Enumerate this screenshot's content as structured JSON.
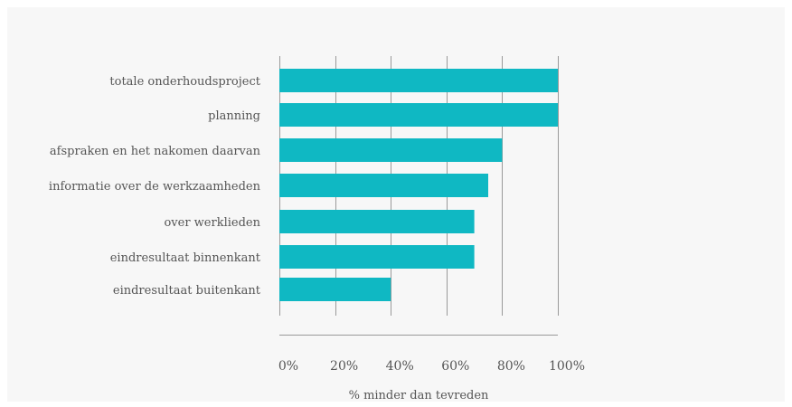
{
  "chart_data": {
    "type": "bar",
    "orientation": "horizontal",
    "categories": [
      "totale onderhoudsproject",
      "planning",
      "afspraken en het nakomen daarvan",
      "informatie over de werkzaamheden",
      "over werklieden",
      "eindresultaat binnenkant",
      "eindresultaat buitenkant"
    ],
    "values": [
      100,
      100,
      80,
      75,
      70,
      70,
      40
    ],
    "xlabel": "% minder dan tevreden",
    "xlim": [
      0,
      100
    ],
    "xticks": [
      0,
      20,
      40,
      60,
      80,
      100
    ],
    "xtick_labels": [
      "0%",
      "20%",
      "40%",
      "60%",
      "80%",
      "100%"
    ],
    "grid": "vertical",
    "colors": {
      "bar": "#0fb8c3",
      "grid": "#9a9a9a",
      "background": "#f7f7f7",
      "text": "#555555"
    }
  }
}
